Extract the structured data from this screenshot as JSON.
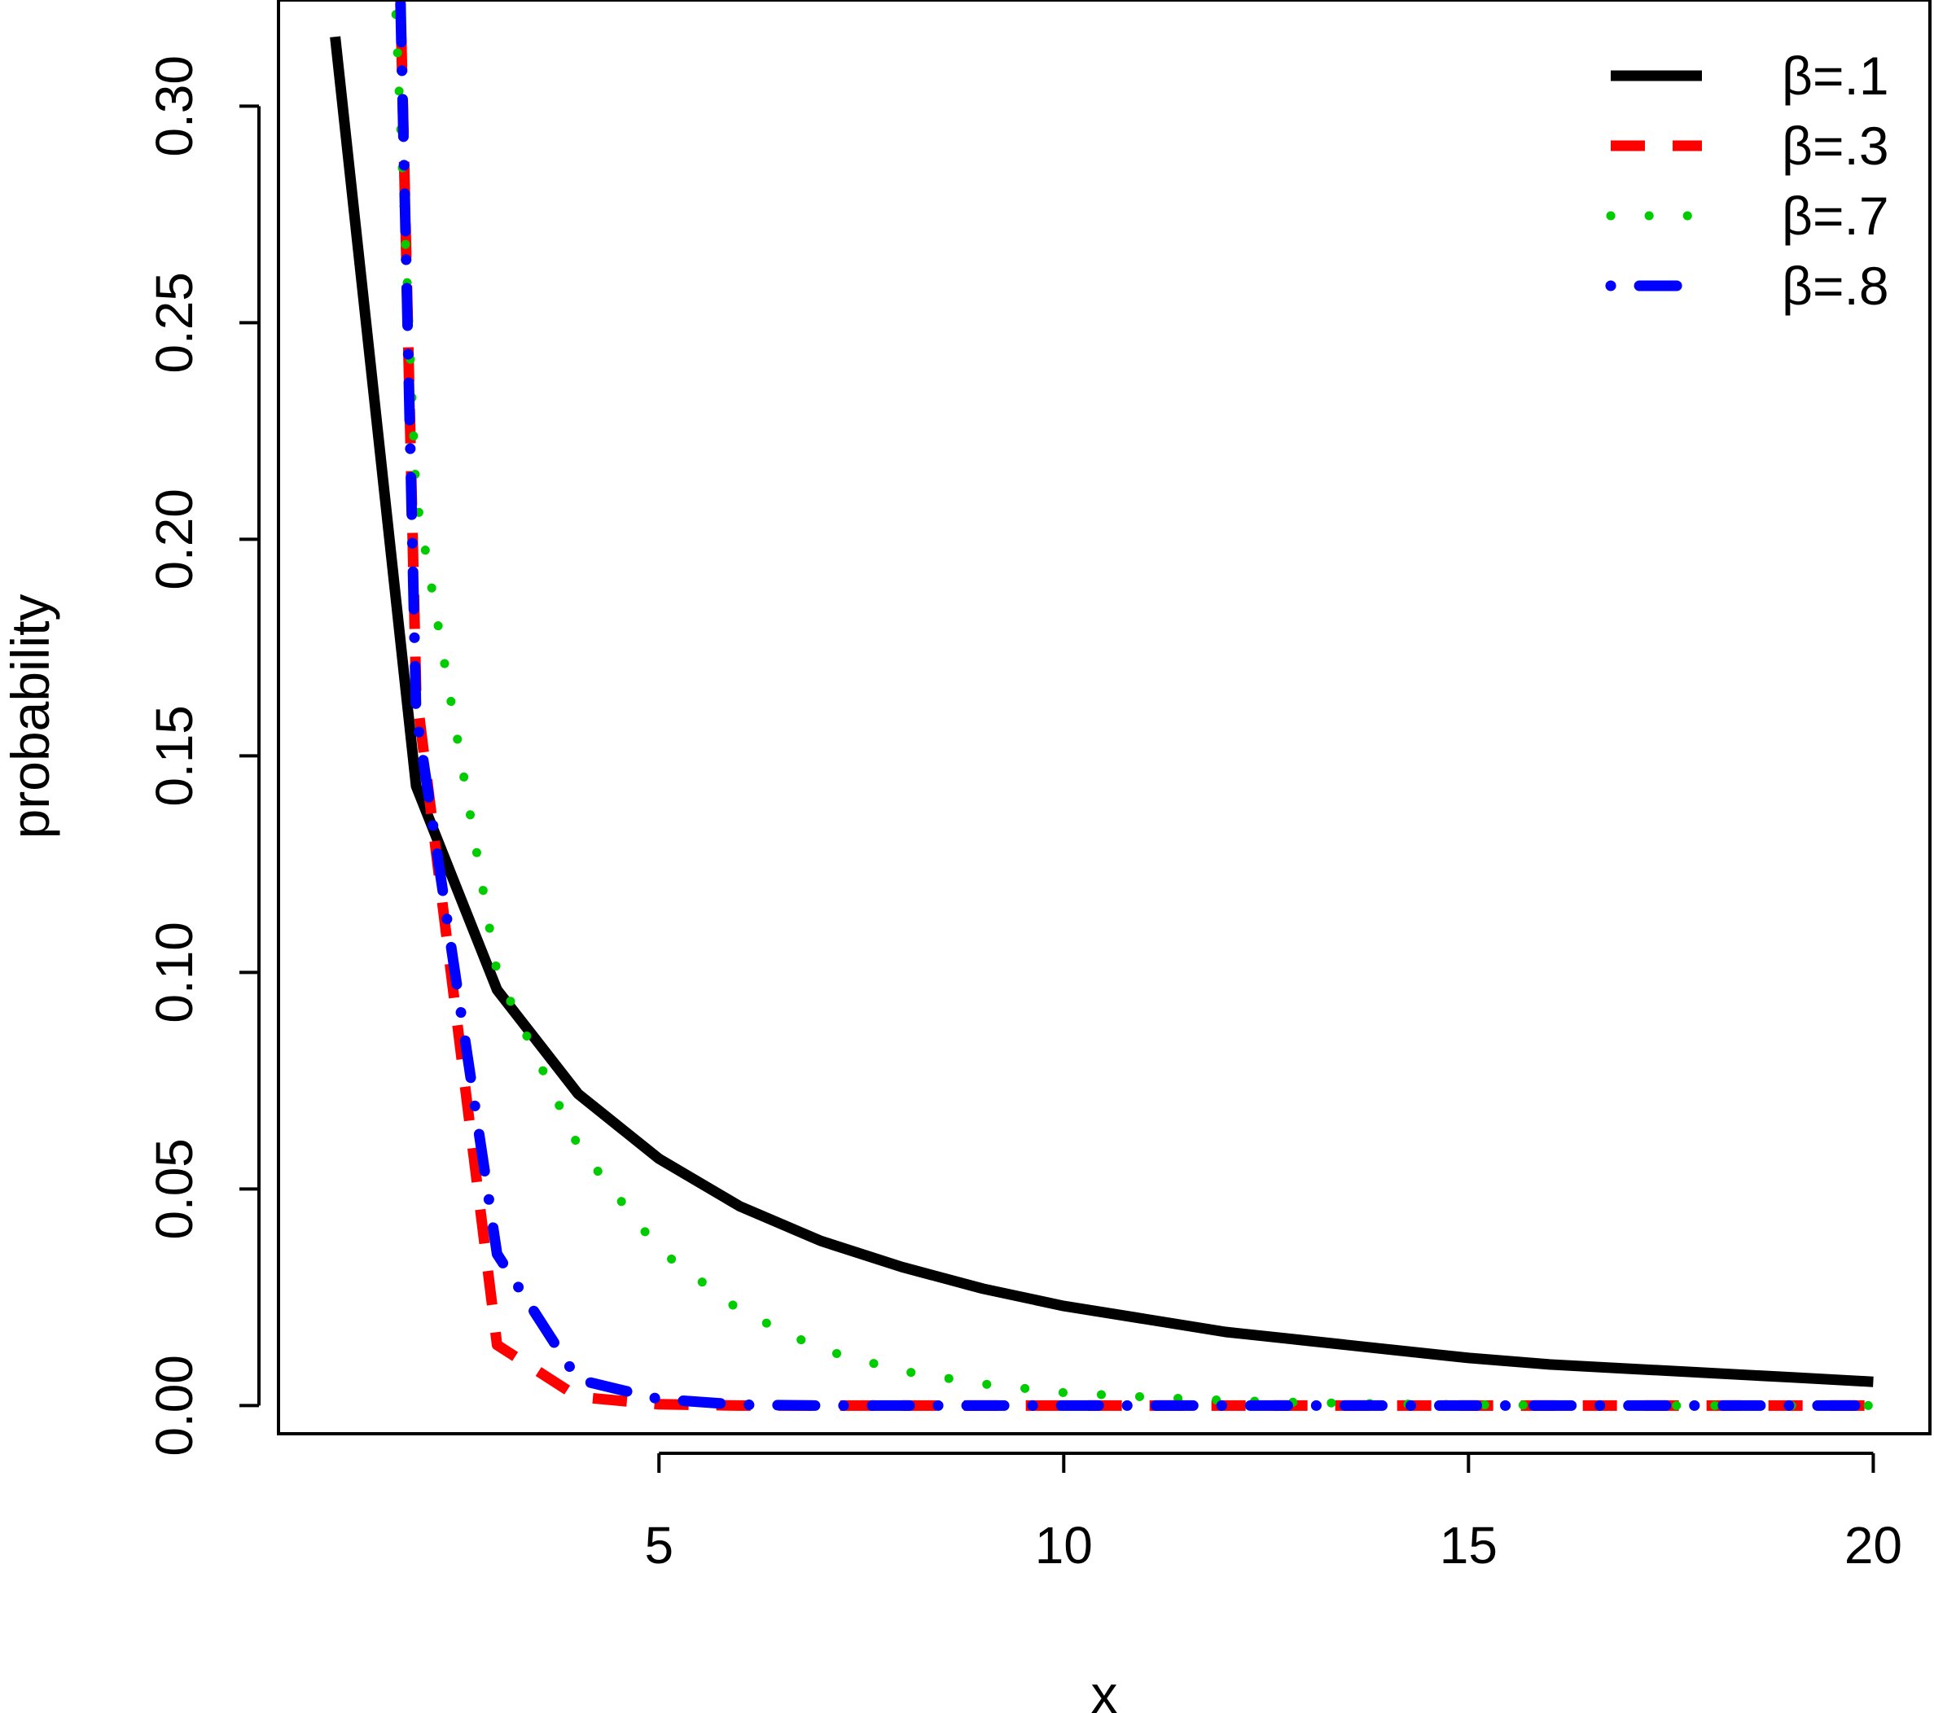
{
  "chart_data": {
    "type": "line",
    "title": "",
    "xlabel": "x",
    "ylabel": "probability",
    "xlim": [
      0.3,
      20.7
    ],
    "ylim": [
      -0.0065,
      0.3245
    ],
    "x_ticks": [
      5,
      10,
      15,
      20
    ],
    "x_tick_labels": [
      "5",
      "10",
      "15",
      "20"
    ],
    "y_ticks": [
      0.0,
      0.05,
      0.1,
      0.15,
      0.2,
      0.25,
      0.3
    ],
    "y_tick_labels": [
      "0.00",
      "0.05",
      "0.10",
      "0.15",
      "0.20",
      "0.25",
      "0.30"
    ],
    "grid": false,
    "legend_position": "top-right",
    "series": [
      {
        "name": "β=.1",
        "color": "#000000",
        "style": "solid",
        "x": [
          1,
          2,
          3,
          4,
          5,
          6,
          7,
          8,
          9,
          10,
          11,
          12,
          13,
          14,
          15,
          16,
          17,
          18,
          19,
          20
        ],
        "y": [
          0.316,
          0.143,
          0.096,
          0.072,
          0.057,
          0.046,
          0.038,
          0.032,
          0.027,
          0.023,
          0.02,
          0.017,
          0.015,
          0.013,
          0.011,
          0.0095,
          0.0085,
          0.0075,
          0.0065,
          0.0055
        ]
      },
      {
        "name": "β=.3",
        "color": "#ff0000",
        "style": "dashed",
        "x": [
          1.8,
          2,
          3,
          4,
          5,
          6,
          7,
          8,
          9,
          10,
          11,
          12,
          13,
          14,
          15,
          16,
          17,
          18,
          19,
          20
        ],
        "y": [
          0.33,
          0.165,
          0.014,
          0.002,
          0.0003,
          0,
          0,
          0,
          0,
          0,
          0,
          0,
          0,
          0,
          0,
          0,
          0,
          0,
          0,
          0
        ]
      },
      {
        "name": "β=.7",
        "color": "#00cc00",
        "style": "dotted",
        "x": [
          1.73,
          2,
          3,
          4,
          5,
          6,
          7,
          8,
          9,
          10,
          11,
          12,
          13,
          14,
          15,
          16,
          17,
          18,
          19,
          20
        ],
        "y": [
          0.33,
          0.21,
          0.1,
          0.06,
          0.036,
          0.022,
          0.013,
          0.008,
          0.005,
          0.003,
          0.002,
          0.0012,
          0.0007,
          0.0004,
          0.0002,
          0.0001,
          0,
          0,
          0,
          0
        ]
      },
      {
        "name": "β=.8",
        "color": "#0000ff",
        "style": "dotdash",
        "x": [
          1.8,
          2,
          3,
          4,
          5,
          6,
          7,
          8,
          9,
          10,
          11,
          12,
          13,
          14,
          15,
          16,
          17,
          18,
          19,
          20
        ],
        "y": [
          0.33,
          0.16,
          0.035,
          0.006,
          0.0015,
          0.0002,
          0,
          0,
          0,
          0,
          0,
          0,
          0,
          0,
          0,
          0,
          0,
          0,
          0,
          0
        ]
      }
    ]
  }
}
